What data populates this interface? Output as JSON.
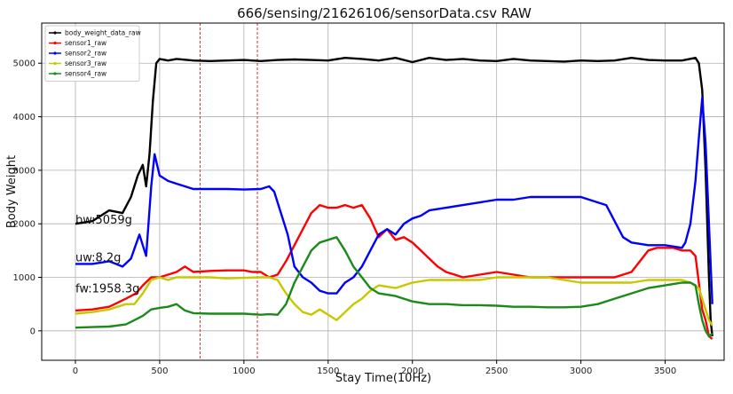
{
  "chart_data": {
    "type": "line",
    "title": "666/sensing/21626106/sensorData.csv RAW",
    "xlabel": "Stay Time(10Hz)",
    "ylabel": "Body Weight",
    "xlim": [
      -200,
      3850
    ],
    "ylim": [
      -550,
      5750
    ],
    "xticks": [
      0,
      500,
      1000,
      1500,
      2000,
      2500,
      3000,
      3500
    ],
    "yticks": [
      0,
      1000,
      2000,
      3000,
      4000,
      5000
    ],
    "grid": true,
    "legend_position": "top-left",
    "vertical_markers": [
      {
        "x": 740,
        "color": "#e03030"
      },
      {
        "x": 1080,
        "color": "#e03030"
      }
    ],
    "annotations": [
      {
        "text": "bw:5059g",
        "x": 0,
        "y": 2000
      },
      {
        "text": "uw:8.2g",
        "x": 0,
        "y": 1300
      },
      {
        "text": "fw:1958.3g",
        "x": 0,
        "y": 720
      }
    ],
    "series": [
      {
        "name": "body_weight_data_raw",
        "color": "#000000",
        "points": [
          [
            0,
            2000
          ],
          [
            100,
            2050
          ],
          [
            200,
            2250
          ],
          [
            280,
            2200
          ],
          [
            330,
            2500
          ],
          [
            370,
            2900
          ],
          [
            400,
            3100
          ],
          [
            420,
            2700
          ],
          [
            440,
            3300
          ],
          [
            460,
            4300
          ],
          [
            480,
            5000
          ],
          [
            500,
            5080
          ],
          [
            550,
            5050
          ],
          [
            600,
            5080
          ],
          [
            700,
            5050
          ],
          [
            800,
            5040
          ],
          [
            900,
            5050
          ],
          [
            1000,
            5060
          ],
          [
            1100,
            5040
          ],
          [
            1200,
            5060
          ],
          [
            1300,
            5070
          ],
          [
            1400,
            5060
          ],
          [
            1500,
            5050
          ],
          [
            1600,
            5100
          ],
          [
            1700,
            5080
          ],
          [
            1800,
            5050
          ],
          [
            1900,
            5100
          ],
          [
            2000,
            5020
          ],
          [
            2100,
            5100
          ],
          [
            2200,
            5060
          ],
          [
            2300,
            5080
          ],
          [
            2400,
            5050
          ],
          [
            2500,
            5040
          ],
          [
            2600,
            5080
          ],
          [
            2700,
            5050
          ],
          [
            2800,
            5040
          ],
          [
            2900,
            5030
          ],
          [
            3000,
            5050
          ],
          [
            3100,
            5040
          ],
          [
            3200,
            5050
          ],
          [
            3300,
            5100
          ],
          [
            3400,
            5060
          ],
          [
            3500,
            5050
          ],
          [
            3600,
            5050
          ],
          [
            3680,
            5100
          ],
          [
            3700,
            5000
          ],
          [
            3720,
            4500
          ],
          [
            3740,
            3000
          ],
          [
            3760,
            1000
          ],
          [
            3770,
            200
          ],
          [
            3780,
            -100
          ]
        ]
      },
      {
        "name": "sensor1_raw",
        "color": "#ff0000",
        "points": [
          [
            0,
            380
          ],
          [
            100,
            400
          ],
          [
            200,
            450
          ],
          [
            300,
            600
          ],
          [
            360,
            700
          ],
          [
            400,
            850
          ],
          [
            450,
            1000
          ],
          [
            500,
            1000
          ],
          [
            550,
            1050
          ],
          [
            600,
            1100
          ],
          [
            650,
            1200
          ],
          [
            700,
            1100
          ],
          [
            800,
            1120
          ],
          [
            900,
            1130
          ],
          [
            1000,
            1130
          ],
          [
            1050,
            1100
          ],
          [
            1100,
            1100
          ],
          [
            1150,
            1000
          ],
          [
            1200,
            1050
          ],
          [
            1250,
            1300
          ],
          [
            1300,
            1600
          ],
          [
            1350,
            1900
          ],
          [
            1400,
            2200
          ],
          [
            1450,
            2350
          ],
          [
            1500,
            2300
          ],
          [
            1550,
            2300
          ],
          [
            1600,
            2350
          ],
          [
            1650,
            2300
          ],
          [
            1700,
            2350
          ],
          [
            1750,
            2100
          ],
          [
            1800,
            1750
          ],
          [
            1850,
            1900
          ],
          [
            1900,
            1700
          ],
          [
            1950,
            1750
          ],
          [
            2000,
            1650
          ],
          [
            2050,
            1500
          ],
          [
            2100,
            1350
          ],
          [
            2150,
            1200
          ],
          [
            2200,
            1100
          ],
          [
            2300,
            1000
          ],
          [
            2400,
            1050
          ],
          [
            2500,
            1100
          ],
          [
            2600,
            1050
          ],
          [
            2700,
            1000
          ],
          [
            2800,
            1000
          ],
          [
            2900,
            1000
          ],
          [
            3000,
            1000
          ],
          [
            3100,
            1000
          ],
          [
            3200,
            1000
          ],
          [
            3300,
            1100
          ],
          [
            3350,
            1300
          ],
          [
            3400,
            1500
          ],
          [
            3450,
            1550
          ],
          [
            3500,
            1550
          ],
          [
            3550,
            1550
          ],
          [
            3600,
            1500
          ],
          [
            3650,
            1500
          ],
          [
            3680,
            1400
          ],
          [
            3700,
            900
          ],
          [
            3720,
            400
          ],
          [
            3740,
            200
          ],
          [
            3760,
            -100
          ],
          [
            3780,
            -150
          ]
        ]
      },
      {
        "name": "sensor2_raw",
        "color": "#0000ff",
        "points": [
          [
            0,
            1250
          ],
          [
            100,
            1250
          ],
          [
            200,
            1300
          ],
          [
            280,
            1200
          ],
          [
            330,
            1350
          ],
          [
            380,
            1800
          ],
          [
            420,
            1400
          ],
          [
            450,
            2700
          ],
          [
            470,
            3300
          ],
          [
            500,
            2900
          ],
          [
            550,
            2800
          ],
          [
            600,
            2750
          ],
          [
            650,
            2700
          ],
          [
            700,
            2650
          ],
          [
            800,
            2650
          ],
          [
            900,
            2650
          ],
          [
            1000,
            2640
          ],
          [
            1100,
            2650
          ],
          [
            1150,
            2700
          ],
          [
            1180,
            2600
          ],
          [
            1220,
            2200
          ],
          [
            1260,
            1800
          ],
          [
            1300,
            1200
          ],
          [
            1350,
            1000
          ],
          [
            1400,
            900
          ],
          [
            1450,
            750
          ],
          [
            1500,
            700
          ],
          [
            1550,
            700
          ],
          [
            1600,
            900
          ],
          [
            1650,
            1000
          ],
          [
            1700,
            1200
          ],
          [
            1750,
            1500
          ],
          [
            1800,
            1800
          ],
          [
            1850,
            1900
          ],
          [
            1900,
            1800
          ],
          [
            1950,
            2000
          ],
          [
            2000,
            2100
          ],
          [
            2050,
            2150
          ],
          [
            2100,
            2250
          ],
          [
            2200,
            2300
          ],
          [
            2300,
            2350
          ],
          [
            2400,
            2400
          ],
          [
            2500,
            2450
          ],
          [
            2600,
            2450
          ],
          [
            2700,
            2500
          ],
          [
            2800,
            2500
          ],
          [
            2900,
            2500
          ],
          [
            3000,
            2500
          ],
          [
            3100,
            2400
          ],
          [
            3150,
            2350
          ],
          [
            3200,
            2050
          ],
          [
            3250,
            1750
          ],
          [
            3300,
            1650
          ],
          [
            3400,
            1600
          ],
          [
            3500,
            1600
          ],
          [
            3600,
            1550
          ],
          [
            3620,
            1650
          ],
          [
            3650,
            2000
          ],
          [
            3680,
            2800
          ],
          [
            3700,
            3600
          ],
          [
            3720,
            4350
          ],
          [
            3740,
            3500
          ],
          [
            3760,
            2000
          ],
          [
            3780,
            500
          ]
        ]
      },
      {
        "name": "sensor3_raw",
        "color": "#c8c800",
        "points": [
          [
            0,
            320
          ],
          [
            100,
            350
          ],
          [
            200,
            400
          ],
          [
            300,
            500
          ],
          [
            350,
            500
          ],
          [
            400,
            700
          ],
          [
            450,
            950
          ],
          [
            500,
            1000
          ],
          [
            550,
            950
          ],
          [
            600,
            1000
          ],
          [
            700,
            1000
          ],
          [
            800,
            1000
          ],
          [
            900,
            980
          ],
          [
            1000,
            990
          ],
          [
            1100,
            1000
          ],
          [
            1150,
            1000
          ],
          [
            1200,
            950
          ],
          [
            1250,
            700
          ],
          [
            1300,
            500
          ],
          [
            1350,
            350
          ],
          [
            1400,
            300
          ],
          [
            1450,
            400
          ],
          [
            1500,
            300
          ],
          [
            1550,
            200
          ],
          [
            1600,
            350
          ],
          [
            1650,
            500
          ],
          [
            1700,
            600
          ],
          [
            1750,
            750
          ],
          [
            1800,
            850
          ],
          [
            1900,
            800
          ],
          [
            2000,
            900
          ],
          [
            2100,
            950
          ],
          [
            2200,
            950
          ],
          [
            2300,
            950
          ],
          [
            2400,
            950
          ],
          [
            2500,
            1000
          ],
          [
            2600,
            1000
          ],
          [
            2700,
            1000
          ],
          [
            2800,
            1000
          ],
          [
            2900,
            950
          ],
          [
            3000,
            900
          ],
          [
            3100,
            900
          ],
          [
            3200,
            900
          ],
          [
            3300,
            900
          ],
          [
            3400,
            950
          ],
          [
            3500,
            950
          ],
          [
            3600,
            950
          ],
          [
            3650,
            900
          ],
          [
            3700,
            800
          ],
          [
            3720,
            600
          ],
          [
            3740,
            400
          ],
          [
            3760,
            200
          ],
          [
            3780,
            100
          ]
        ]
      },
      {
        "name": "sensor4_raw",
        "color": "#1a8a1a",
        "points": [
          [
            0,
            60
          ],
          [
            100,
            70
          ],
          [
            200,
            80
          ],
          [
            300,
            120
          ],
          [
            350,
            200
          ],
          [
            400,
            280
          ],
          [
            450,
            400
          ],
          [
            500,
            430
          ],
          [
            550,
            450
          ],
          [
            600,
            500
          ],
          [
            650,
            380
          ],
          [
            700,
            330
          ],
          [
            800,
            320
          ],
          [
            900,
            320
          ],
          [
            1000,
            320
          ],
          [
            1100,
            300
          ],
          [
            1150,
            310
          ],
          [
            1200,
            300
          ],
          [
            1250,
            500
          ],
          [
            1300,
            900
          ],
          [
            1350,
            1200
          ],
          [
            1400,
            1500
          ],
          [
            1450,
            1650
          ],
          [
            1500,
            1700
          ],
          [
            1550,
            1750
          ],
          [
            1600,
            1500
          ],
          [
            1650,
            1200
          ],
          [
            1700,
            1000
          ],
          [
            1750,
            800
          ],
          [
            1800,
            700
          ],
          [
            1900,
            650
          ],
          [
            2000,
            550
          ],
          [
            2100,
            500
          ],
          [
            2200,
            500
          ],
          [
            2300,
            480
          ],
          [
            2400,
            480
          ],
          [
            2500,
            470
          ],
          [
            2600,
            450
          ],
          [
            2700,
            450
          ],
          [
            2800,
            440
          ],
          [
            2900,
            440
          ],
          [
            3000,
            450
          ],
          [
            3100,
            500
          ],
          [
            3200,
            600
          ],
          [
            3300,
            700
          ],
          [
            3400,
            800
          ],
          [
            3500,
            850
          ],
          [
            3600,
            900
          ],
          [
            3650,
            900
          ],
          [
            3680,
            850
          ],
          [
            3700,
            500
          ],
          [
            3720,
            200
          ],
          [
            3740,
            0
          ],
          [
            3760,
            -100
          ],
          [
            3780,
            -50
          ]
        ]
      }
    ]
  }
}
